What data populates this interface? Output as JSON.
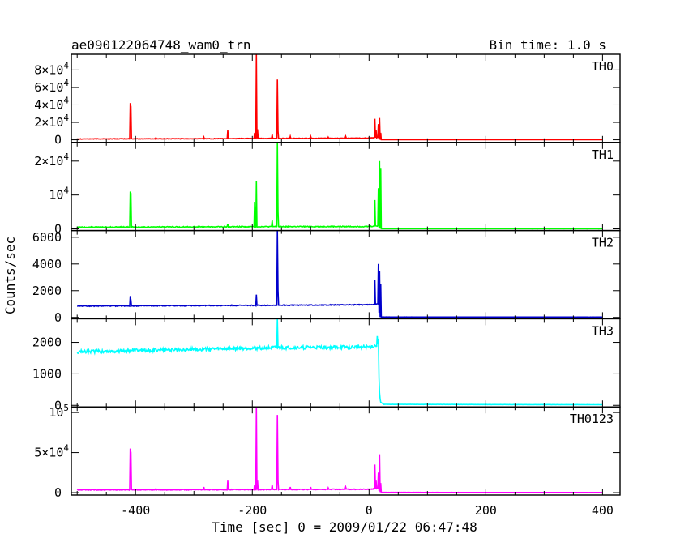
{
  "chart_data": {
    "type": "line",
    "title": "ae090122064748_wam0_trn",
    "bin_time": "Bin time: 1.0 s",
    "xlabel": "Time [sec] 0 = 2009/01/22 06:47:48",
    "ylabel": "Counts/sec",
    "xlim": [
      -510,
      430
    ],
    "x_ticks": [
      -400,
      -200,
      0,
      200,
      400
    ],
    "panels": [
      {
        "name": "TH0",
        "color": "#ff0000",
        "ylim": [
          -3000,
          98000
        ],
        "y_ticks": [
          {
            "v": 0,
            "base": "0",
            "exp": ""
          },
          {
            "v": 20000,
            "base": "2×10",
            "exp": "4"
          },
          {
            "v": 40000,
            "base": "4×10",
            "exp": "4"
          },
          {
            "v": 60000,
            "base": "6×10",
            "exp": "4"
          },
          {
            "v": 80000,
            "base": "8×10",
            "exp": "4"
          }
        ],
        "baseline": [
          [
            -500,
            1000
          ],
          [
            -420,
            1100
          ],
          [
            -300,
            1200
          ],
          [
            -200,
            1500
          ],
          [
            -100,
            1700
          ],
          [
            0,
            1900
          ],
          [
            15,
            2500
          ],
          [
            18,
            100
          ],
          [
            400,
            80
          ]
        ],
        "noise": 600,
        "spikes": [
          [
            -409,
            42000
          ],
          [
            -408,
            38000
          ],
          [
            -365,
            2500
          ],
          [
            -283,
            3000
          ],
          [
            -242,
            11000
          ],
          [
            -196,
            8000
          ],
          [
            -193,
            98000
          ],
          [
            -191,
            12000
          ],
          [
            -166,
            6000
          ],
          [
            -157,
            69000
          ],
          [
            -156,
            10000
          ],
          [
            -135,
            4000
          ],
          [
            -100,
            4000
          ],
          [
            -70,
            3000
          ],
          [
            -40,
            4000
          ],
          [
            10,
            24000
          ],
          [
            12,
            11000
          ],
          [
            16,
            18000
          ],
          [
            18,
            25000
          ],
          [
            20,
            8000
          ]
        ]
      },
      {
        "name": "TH1",
        "color": "#00ff00",
        "ylim": [
          -500,
          25500
        ],
        "y_ticks": [
          {
            "v": 0,
            "base": "0",
            "exp": ""
          },
          {
            "v": 10000,
            "base": "10",
            "exp": "4"
          },
          {
            "v": 20000,
            "base": "2×10",
            "exp": "4"
          }
        ],
        "baseline": [
          [
            -500,
            500
          ],
          [
            -300,
            600
          ],
          [
            -200,
            650
          ],
          [
            0,
            700
          ],
          [
            15,
            900
          ],
          [
            18,
            50
          ],
          [
            400,
            40
          ]
        ],
        "noise": 250,
        "spikes": [
          [
            -409,
            11000
          ],
          [
            -408,
            10500
          ],
          [
            -242,
            1500
          ],
          [
            -196,
            8000
          ],
          [
            -193,
            14000
          ],
          [
            -166,
            2500
          ],
          [
            -157,
            25500
          ],
          [
            -156,
            5000
          ],
          [
            10,
            8500
          ],
          [
            16,
            12000
          ],
          [
            18,
            20000
          ],
          [
            20,
            18000
          ]
        ]
      },
      {
        "name": "TH2",
        "color": "#0000cc",
        "ylim": [
          -100,
          6500
        ],
        "y_ticks": [
          {
            "v": 0,
            "base": "0",
            "exp": ""
          },
          {
            "v": 2000,
            "base": "2000",
            "exp": ""
          },
          {
            "v": 4000,
            "base": "4000",
            "exp": ""
          },
          {
            "v": 6000,
            "base": "6000",
            "exp": ""
          }
        ],
        "baseline": [
          [
            -500,
            850
          ],
          [
            -300,
            880
          ],
          [
            -200,
            900
          ],
          [
            0,
            950
          ],
          [
            15,
            1000
          ],
          [
            18,
            30
          ],
          [
            400,
            25
          ]
        ],
        "noise": 60,
        "spikes": [
          [
            -409,
            1600
          ],
          [
            -408,
            1300
          ],
          [
            -193,
            1700
          ],
          [
            -157,
            6500
          ],
          [
            -156,
            2000
          ],
          [
            10,
            2800
          ],
          [
            16,
            4000
          ],
          [
            18,
            3500
          ],
          [
            20,
            2500
          ]
        ]
      },
      {
        "name": "TH3",
        "color": "#00ffff",
        "ylim": [
          -50,
          2750
        ],
        "y_ticks": [
          {
            "v": 0,
            "base": "0",
            "exp": ""
          },
          {
            "v": 1000,
            "base": "1000",
            "exp": ""
          },
          {
            "v": 2000,
            "base": "2000",
            "exp": ""
          }
        ],
        "baseline": [
          [
            -500,
            1700
          ],
          [
            -300,
            1780
          ],
          [
            -150,
            1830
          ],
          [
            0,
            1850
          ],
          [
            15,
            1900
          ],
          [
            18,
            400
          ],
          [
            20,
            100
          ],
          [
            25,
            30
          ],
          [
            400,
            20
          ]
        ],
        "noise": 110,
        "spikes": [
          [
            -157,
            2750
          ],
          [
            14,
            2200
          ],
          [
            16,
            2100
          ]
        ]
      },
      {
        "name": "TH0123",
        "color": "#ff00ff",
        "ylim": [
          -3000,
          107000
        ],
        "y_ticks": [
          {
            "v": 0,
            "base": "0",
            "exp": ""
          },
          {
            "v": 50000,
            "base": "5×10",
            "exp": "4"
          },
          {
            "v": 100000,
            "base": "10",
            "exp": "5"
          }
        ],
        "baseline": [
          [
            -500,
            3500
          ],
          [
            -300,
            3600
          ],
          [
            -200,
            3800
          ],
          [
            0,
            4200
          ],
          [
            15,
            5000
          ],
          [
            18,
            300
          ],
          [
            400,
            200
          ]
        ],
        "noise": 900,
        "spikes": [
          [
            -409,
            55000
          ],
          [
            -408,
            50000
          ],
          [
            -365,
            5000
          ],
          [
            -283,
            7000
          ],
          [
            -242,
            15000
          ],
          [
            -196,
            10000
          ],
          [
            -193,
            107000
          ],
          [
            -191,
            15000
          ],
          [
            -166,
            10000
          ],
          [
            -157,
            97000
          ],
          [
            -156,
            15000
          ],
          [
            -135,
            7000
          ],
          [
            -100,
            7000
          ],
          [
            -70,
            6000
          ],
          [
            -40,
            7000
          ],
          [
            10,
            35000
          ],
          [
            12,
            15000
          ],
          [
            16,
            25000
          ],
          [
            18,
            48000
          ],
          [
            20,
            12000
          ]
        ]
      }
    ]
  }
}
